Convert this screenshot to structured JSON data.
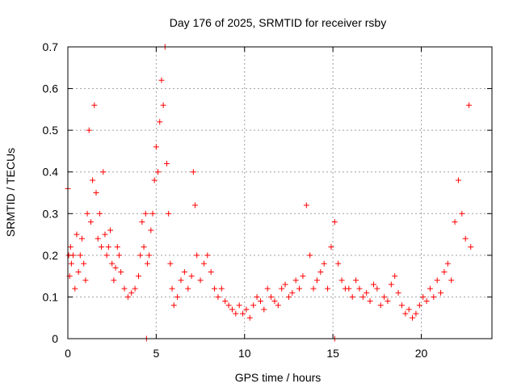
{
  "chart_data": {
    "type": "scatter",
    "title": "Day 176 of 2025, SRMTID for receiver rsby",
    "xlabel": "GPS time / hours",
    "ylabel": "SRMTID / TECUs",
    "xlim": [
      0,
      24
    ],
    "ylim": [
      0,
      0.7
    ],
    "x_ticks": [
      0,
      5,
      10,
      15,
      20
    ],
    "x_tick_labels": [
      "0",
      "5",
      "10",
      "15",
      "20"
    ],
    "y_ticks": [
      0,
      0.1,
      0.2,
      0.3,
      0.4,
      0.5,
      0.6,
      0.7
    ],
    "y_tick_labels": [
      "0",
      "0.1",
      "0.2",
      "0.3",
      "0.4",
      "0.5",
      "0.6",
      "0.7"
    ],
    "grid": true,
    "marker": "+",
    "series": [
      {
        "name": "SRMTID",
        "color": "#ff0000",
        "x": [
          0.0,
          0.05,
          0.1,
          0.15,
          0.2,
          0.3,
          0.4,
          0.5,
          0.6,
          0.7,
          0.8,
          0.9,
          1.0,
          1.1,
          1.2,
          1.3,
          1.4,
          1.5,
          1.6,
          1.7,
          1.8,
          1.9,
          2.0,
          2.1,
          2.2,
          2.3,
          2.4,
          2.5,
          2.6,
          2.7,
          2.8,
          2.9,
          3.0,
          3.2,
          3.4,
          3.6,
          3.8,
          4.0,
          4.1,
          4.2,
          4.3,
          4.4,
          4.5,
          4.6,
          4.7,
          4.8,
          4.9,
          5.0,
          5.1,
          5.2,
          5.3,
          5.4,
          5.5,
          5.6,
          5.7,
          5.8,
          5.9,
          6.0,
          6.2,
          6.4,
          6.6,
          6.8,
          7.0,
          7.1,
          7.2,
          7.3,
          7.5,
          7.7,
          7.9,
          8.1,
          8.3,
          8.5,
          8.7,
          8.9,
          9.1,
          9.3,
          9.5,
          9.7,
          9.9,
          10.1,
          10.3,
          10.5,
          10.7,
          10.9,
          11.1,
          11.3,
          11.5,
          11.7,
          11.9,
          12.1,
          12.3,
          12.5,
          12.7,
          12.9,
          13.1,
          13.3,
          13.5,
          13.7,
          13.9,
          14.1,
          14.3,
          14.5,
          14.7,
          14.9,
          15.1,
          15.3,
          15.5,
          15.7,
          15.9,
          16.1,
          16.3,
          16.5,
          16.7,
          16.9,
          17.1,
          17.3,
          17.5,
          17.7,
          17.9,
          18.1,
          18.3,
          18.5,
          18.7,
          18.9,
          19.1,
          19.3,
          19.5,
          19.7,
          19.9,
          20.1,
          20.3,
          20.5,
          20.7,
          20.9,
          21.1,
          21.3,
          21.5,
          21.7,
          21.9,
          22.1,
          22.3,
          22.5,
          22.7,
          22.8,
          4.45,
          15.1
        ],
        "y": [
          0.36,
          0.2,
          0.15,
          0.22,
          0.18,
          0.2,
          0.12,
          0.25,
          0.16,
          0.2,
          0.24,
          0.18,
          0.14,
          0.3,
          0.5,
          0.28,
          0.38,
          0.56,
          0.35,
          0.24,
          0.3,
          0.22,
          0.4,
          0.25,
          0.2,
          0.22,
          0.26,
          0.18,
          0.14,
          0.17,
          0.22,
          0.2,
          0.16,
          0.12,
          0.1,
          0.11,
          0.12,
          0.15,
          0.2,
          0.28,
          0.22,
          0.3,
          0.18,
          0.2,
          0.26,
          0.3,
          0.38,
          0.46,
          0.4,
          0.52,
          0.62,
          0.56,
          0.7,
          0.42,
          0.3,
          0.18,
          0.12,
          0.08,
          0.1,
          0.14,
          0.16,
          0.12,
          0.15,
          0.4,
          0.32,
          0.2,
          0.14,
          0.18,
          0.2,
          0.16,
          0.12,
          0.1,
          0.12,
          0.09,
          0.08,
          0.07,
          0.06,
          0.08,
          0.06,
          0.07,
          0.05,
          0.08,
          0.1,
          0.09,
          0.07,
          0.12,
          0.1,
          0.09,
          0.08,
          0.12,
          0.13,
          0.1,
          0.11,
          0.14,
          0.12,
          0.15,
          0.32,
          0.2,
          0.12,
          0.14,
          0.16,
          0.18,
          0.12,
          0.22,
          0.28,
          0.18,
          0.14,
          0.12,
          0.12,
          0.1,
          0.14,
          0.12,
          0.1,
          0.11,
          0.09,
          0.13,
          0.12,
          0.08,
          0.1,
          0.09,
          0.13,
          0.15,
          0.11,
          0.08,
          0.06,
          0.07,
          0.05,
          0.06,
          0.08,
          0.1,
          0.09,
          0.12,
          0.1,
          0.14,
          0.11,
          0.16,
          0.18,
          0.14,
          0.28,
          0.38,
          0.3,
          0.24,
          0.56,
          0.22,
          0.0,
          0.0
        ]
      }
    ]
  }
}
